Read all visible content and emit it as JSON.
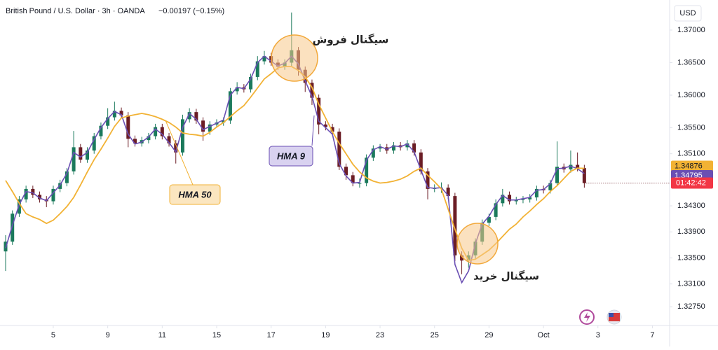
{
  "chart_data": {
    "type": "candlestick",
    "title": "British Pound / U.S. Dollar · 3h · OANDA",
    "change": "−0.00197 (−0.15%)",
    "currency": "USD",
    "countdown": "01:42:42",
    "up_color": "#1b7a5c",
    "down_color": "#6b1d25",
    "open": [
      1.336,
      1.3375,
      1.3418,
      1.344,
      1.3456,
      1.3447,
      1.344,
      1.3437,
      1.3456,
      1.3465,
      1.3483,
      1.352,
      1.3501,
      1.3515,
      1.3537,
      1.3553,
      1.3566,
      1.3576,
      1.3569,
      1.3533,
      1.3526,
      1.3531,
      1.3537,
      1.3551,
      1.3537,
      1.3526,
      1.3512,
      1.3563,
      1.3574,
      1.3561,
      1.3544,
      1.3555,
      1.3558,
      1.3561,
      1.3606,
      1.3612,
      1.3609,
      1.3628,
      1.3652,
      1.366,
      1.365,
      1.3644,
      1.365,
      1.3669,
      1.3639,
      1.3619,
      1.3596,
      1.3555,
      1.3551,
      1.3544,
      1.349,
      1.3477,
      1.3465,
      1.3465,
      1.3504,
      1.3518,
      1.352,
      1.3515,
      1.3523,
      1.352,
      1.3526,
      1.3512,
      1.3483,
      1.3456,
      1.3458,
      1.3458,
      1.3445,
      1.3354,
      1.3346,
      1.3354,
      1.3375,
      1.3404,
      1.3413,
      1.3434,
      1.3447,
      1.3437,
      1.3439,
      1.344,
      1.3443,
      1.3456,
      1.3454,
      1.3465,
      1.349,
      1.3486,
      1.3493,
      1.3488
    ],
    "high": [
      1.3385,
      1.3423,
      1.3445,
      1.3461,
      1.3461,
      1.3452,
      1.3445,
      1.3461,
      1.347,
      1.3488,
      1.3545,
      1.3525,
      1.352,
      1.3542,
      1.3558,
      1.358,
      1.359,
      1.3581,
      1.3574,
      1.3538,
      1.3536,
      1.3542,
      1.3556,
      1.3556,
      1.3542,
      1.3531,
      1.357,
      1.358,
      1.3579,
      1.3566,
      1.356,
      1.3563,
      1.3566,
      1.3611,
      1.362,
      1.3617,
      1.3633,
      1.366,
      1.3668,
      1.3665,
      1.3655,
      1.3655,
      1.3727,
      1.3674,
      1.3644,
      1.3624,
      1.3601,
      1.356,
      1.3556,
      1.3549,
      1.3495,
      1.3482,
      1.3472,
      1.3509,
      1.3523,
      1.3525,
      1.3525,
      1.3528,
      1.3528,
      1.3531,
      1.3531,
      1.3517,
      1.3488,
      1.3463,
      1.3466,
      1.3463,
      1.345,
      1.336,
      1.336,
      1.338,
      1.3409,
      1.3418,
      1.344,
      1.3456,
      1.3452,
      1.3444,
      1.3445,
      1.3448,
      1.3461,
      1.3461,
      1.347,
      1.3529,
      1.3495,
      1.3515,
      1.3512,
      1.3493
    ],
    "low": [
      1.333,
      1.337,
      1.3413,
      1.3435,
      1.3442,
      1.3435,
      1.3428,
      1.3432,
      1.3451,
      1.346,
      1.3478,
      1.3496,
      1.3496,
      1.351,
      1.3532,
      1.3548,
      1.3561,
      1.3564,
      1.352,
      1.3521,
      1.3521,
      1.3526,
      1.3532,
      1.3532,
      1.3521,
      1.3495,
      1.3507,
      1.3558,
      1.3556,
      1.353,
      1.3539,
      1.355,
      1.3553,
      1.3556,
      1.3601,
      1.3604,
      1.3604,
      1.3623,
      1.3647,
      1.3645,
      1.3639,
      1.3639,
      1.3645,
      1.363,
      1.3605,
      1.3585,
      1.354,
      1.3546,
      1.3539,
      1.3485,
      1.347,
      1.346,
      1.3458,
      1.346,
      1.3499,
      1.3513,
      1.351,
      1.351,
      1.3515,
      1.3515,
      1.3507,
      1.3478,
      1.344,
      1.3451,
      1.345,
      1.344,
      1.3345,
      1.3325,
      1.3335,
      1.3349,
      1.337,
      1.3399,
      1.3408,
      1.3429,
      1.3432,
      1.3432,
      1.3434,
      1.3435,
      1.3438,
      1.3449,
      1.3449,
      1.346,
      1.3481,
      1.3481,
      1.3483,
      1.3458
    ],
    "close": [
      1.3375,
      1.3418,
      1.344,
      1.3456,
      1.3447,
      1.344,
      1.3437,
      1.3456,
      1.3465,
      1.3483,
      1.352,
      1.3501,
      1.3515,
      1.3537,
      1.3553,
      1.3566,
      1.3576,
      1.3569,
      1.3533,
      1.3526,
      1.3531,
      1.3537,
      1.3551,
      1.3537,
      1.3526,
      1.3512,
      1.3563,
      1.3574,
      1.3561,
      1.3544,
      1.3555,
      1.3558,
      1.3561,
      1.3606,
      1.3612,
      1.3609,
      1.3628,
      1.3652,
      1.366,
      1.365,
      1.3644,
      1.365,
      1.3669,
      1.3639,
      1.3619,
      1.3596,
      1.3555,
      1.3551,
      1.3544,
      1.349,
      1.3477,
      1.3465,
      1.3465,
      1.3504,
      1.3518,
      1.352,
      1.3515,
      1.3523,
      1.352,
      1.3526,
      1.3512,
      1.3483,
      1.3456,
      1.3458,
      1.3458,
      1.3445,
      1.3354,
      1.3346,
      1.3354,
      1.3375,
      1.3404,
      1.3413,
      1.3434,
      1.3447,
      1.3437,
      1.3439,
      1.344,
      1.3443,
      1.3456,
      1.3454,
      1.3465,
      1.349,
      1.3486,
      1.3493,
      1.3488,
      1.3465
    ],
    "series": [
      {
        "name": "HMA 9",
        "color": "#6a4fb3",
        "last_label": "1.34795",
        "values": [
          1.3365,
          1.34,
          1.3432,
          1.3452,
          1.345,
          1.3442,
          1.3438,
          1.345,
          1.3462,
          1.348,
          1.3512,
          1.3505,
          1.3512,
          1.3532,
          1.355,
          1.3564,
          1.3575,
          1.357,
          1.354,
          1.3525,
          1.3528,
          1.3536,
          1.3548,
          1.354,
          1.3527,
          1.3513,
          1.355,
          1.3572,
          1.3563,
          1.3547,
          1.3552,
          1.3557,
          1.3562,
          1.36,
          1.3612,
          1.361,
          1.3625,
          1.365,
          1.366,
          1.3652,
          1.3645,
          1.3649,
          1.366,
          1.3648,
          1.3622,
          1.3598,
          1.356,
          1.355,
          1.354,
          1.3495,
          1.3476,
          1.3465,
          1.3466,
          1.35,
          1.3516,
          1.3521,
          1.3517,
          1.3522,
          1.3521,
          1.3525,
          1.3513,
          1.3485,
          1.3458,
          1.3457,
          1.3458,
          1.3446,
          1.334,
          1.3312,
          1.333,
          1.3372,
          1.3402,
          1.3414,
          1.3432,
          1.3446,
          1.3439,
          1.3439,
          1.3441,
          1.3443,
          1.3454,
          1.3455,
          1.3464,
          1.3487,
          1.3488,
          1.3491,
          1.3487,
          1.34795
        ]
      },
      {
        "name": "HMA 50",
        "color": "#f2b234",
        "last_label": "1.34876",
        "values": [
          1.3469,
          1.3452,
          1.3434,
          1.3418,
          1.3413,
          1.3409,
          1.3403,
          1.3408,
          1.3418,
          1.3429,
          1.3443,
          1.3462,
          1.3482,
          1.3501,
          1.3517,
          1.3534,
          1.3552,
          1.3565,
          1.3568,
          1.357,
          1.3572,
          1.357,
          1.3567,
          1.3563,
          1.3558,
          1.3551,
          1.3542,
          1.354,
          1.3539,
          1.3537,
          1.3543,
          1.3551,
          1.3558,
          1.3567,
          1.3576,
          1.3584,
          1.3597,
          1.3611,
          1.3625,
          1.3633,
          1.3642,
          1.3644,
          1.3644,
          1.3638,
          1.3628,
          1.3612,
          1.3586,
          1.3565,
          1.3544,
          1.3526,
          1.351,
          1.3494,
          1.3482,
          1.3473,
          1.3468,
          1.3465,
          1.3466,
          1.3468,
          1.3471,
          1.3476,
          1.3483,
          1.3488,
          1.3477,
          1.3467,
          1.3456,
          1.3425,
          1.3394,
          1.3365,
          1.3346,
          1.3348,
          1.3355,
          1.3362,
          1.3372,
          1.3383,
          1.3394,
          1.3402,
          1.3413,
          1.3422,
          1.3432,
          1.3441,
          1.3452,
          1.3461,
          1.3472,
          1.3483,
          1.3488,
          1.34876
        ]
      }
    ],
    "annotations": [
      "سیگنال فروش",
      "سیگنال خرید"
    ],
    "ylim": [
      1.32462,
      1.37462
    ],
    "yticks": [
      {
        "value": 1.37,
        "label": "1.37000"
      },
      {
        "value": 1.365,
        "label": "1.36500"
      },
      {
        "value": 1.36,
        "label": "1.36000"
      },
      {
        "value": 1.355,
        "label": "1.35500"
      },
      {
        "value": 1.351,
        "label": "1.35100"
      },
      {
        "value": 1.343,
        "label": "1.34300"
      },
      {
        "value": 1.339,
        "label": "1.33900"
      },
      {
        "value": 1.335,
        "label": "1.33500"
      },
      {
        "value": 1.331,
        "label": "1.33100"
      },
      {
        "value": 1.3275,
        "label": "1.32750"
      }
    ],
    "xticks": [
      {
        "value": 7,
        "label": "5"
      },
      {
        "value": 15,
        "label": "9"
      },
      {
        "value": 23,
        "label": "11"
      },
      {
        "value": 31,
        "label": "15"
      },
      {
        "value": 39,
        "label": "17"
      },
      {
        "value": 47,
        "label": "19"
      },
      {
        "value": 55,
        "label": "23"
      },
      {
        "value": 63,
        "label": "25"
      },
      {
        "value": 71,
        "label": "29"
      },
      {
        "value": 79,
        "label": "Oct"
      },
      {
        "value": 87,
        "label": "3"
      },
      {
        "value": 95,
        "label": "7"
      }
    ]
  }
}
